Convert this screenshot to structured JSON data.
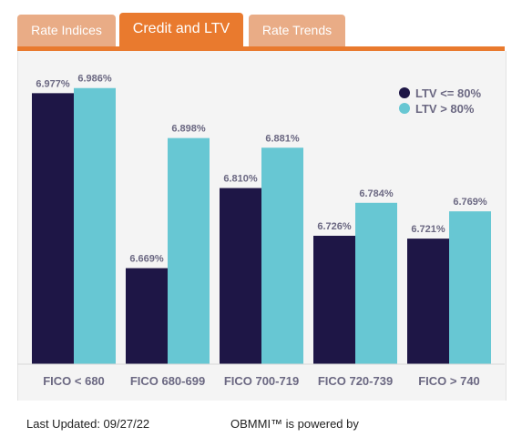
{
  "tabs": [
    {
      "label": "Rate Indices",
      "active": false
    },
    {
      "label": "Credit and LTV",
      "active": true
    },
    {
      "label": "Rate Trends",
      "active": false
    }
  ],
  "footer": {
    "last_updated": "Last Updated: 09/27/22",
    "powered_by": "OBMMI™ is powered by"
  },
  "colors": {
    "accent": "#e97a2e",
    "tab_inactive": "#e9ac86",
    "series_1": "#1e1646",
    "series_2": "#67c7d3",
    "label_text": "#6b6882"
  },
  "chart_data": {
    "type": "bar",
    "categories": [
      "FICO < 680",
      "FICO 680-699",
      "FICO 700-719",
      "FICO 720-739",
      "FICO > 740"
    ],
    "series": [
      {
        "name": "LTV <= 80%",
        "values": [
          6.977,
          6.669,
          6.81,
          6.726,
          6.721
        ],
        "labels": [
          "6.977%",
          "6.669%",
          "6.810%",
          "6.726%",
          "6.721%"
        ],
        "color": "#1e1646"
      },
      {
        "name": "LTV > 80%",
        "values": [
          6.986,
          6.898,
          6.881,
          6.784,
          6.769
        ],
        "labels": [
          "6.986%",
          "6.898%",
          "6.881%",
          "6.784%",
          "6.769%"
        ],
        "color": "#67c7d3"
      }
    ],
    "ylim": [
      6.5,
      7.0
    ],
    "grid": false,
    "legend": "top-right"
  }
}
